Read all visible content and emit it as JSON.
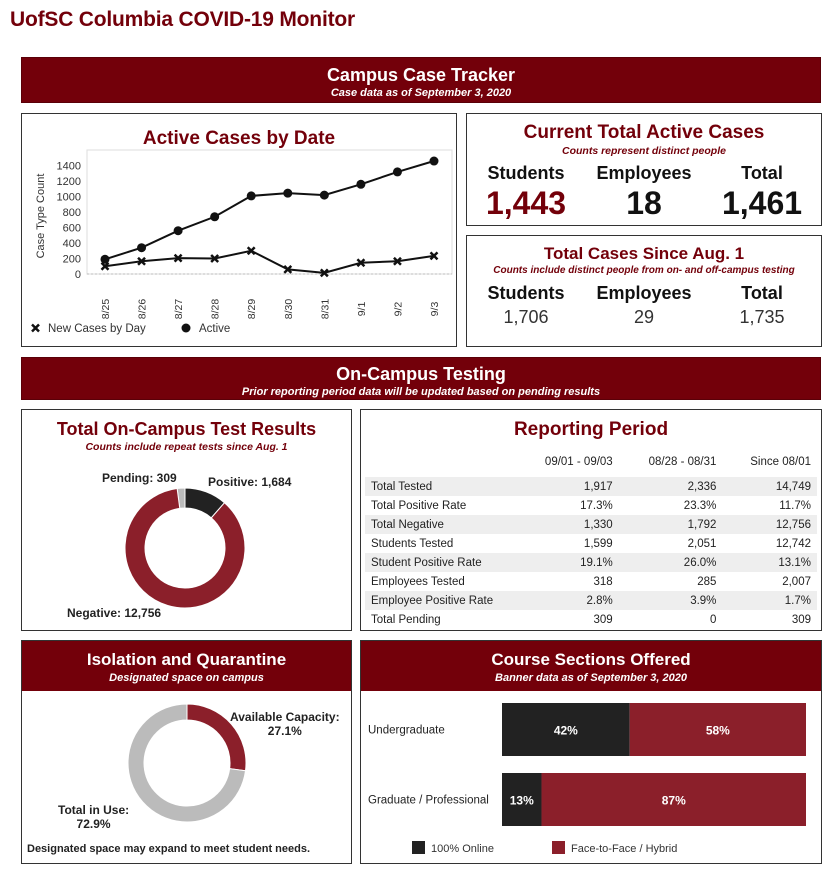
{
  "page_title": "UofSC Columbia COVID-19 Monitor",
  "colors": {
    "garnet": "#73000a",
    "red": "#8b1f2a",
    "black": "#222222",
    "gray": "#bbbbbb"
  },
  "campus_banner": {
    "title": "Campus Case Tracker",
    "subtitle": "Case data as of September 3, 2020"
  },
  "current_active": {
    "title": "Current Total Active Cases",
    "subtitle": "Counts represent distinct people",
    "labels": [
      "Students",
      "Employees",
      "Total"
    ],
    "values": [
      "1,443",
      "18",
      "1,461"
    ]
  },
  "total_since": {
    "title": "Total Cases Since Aug. 1",
    "subtitle": "Counts include distinct people from on- and off-campus testing",
    "labels": [
      "Students",
      "Employees",
      "Total"
    ],
    "values": [
      "1,706",
      "29",
      "1,735"
    ]
  },
  "testing_banner": {
    "title": "On-Campus Testing",
    "subtitle": "Prior reporting period data will be updated based on pending results"
  },
  "test_results": {
    "title": "Total On-Campus Test Results",
    "subtitle": "Counts include repeat tests since Aug. 1",
    "pending_label": "Pending: 309",
    "positive_label": "Positive: 1,684",
    "negative_label": "Negative: 12,756"
  },
  "reporting": {
    "title": "Reporting Period",
    "columns": [
      "09/01 - 09/03",
      "08/28 - 08/31",
      "Since 08/01"
    ],
    "rows": [
      [
        "Total Tested",
        "1,917",
        "2,336",
        "14,749"
      ],
      [
        "Total Positive Rate",
        "17.3%",
        "23.3%",
        "11.7%"
      ],
      [
        "Total Negative",
        "1,330",
        "1,792",
        "12,756"
      ],
      [
        "Students Tested",
        "1,599",
        "2,051",
        "12,742"
      ],
      [
        "Student Positive Rate",
        "19.1%",
        "26.0%",
        "13.1%"
      ],
      [
        "Employees Tested",
        "318",
        "285",
        "2,007"
      ],
      [
        "Employee Positive Rate",
        "2.8%",
        "3.9%",
        "1.7%"
      ],
      [
        "Total Pending",
        "309",
        "0",
        "309"
      ]
    ]
  },
  "isolation": {
    "title": "Isolation and Quarantine",
    "subtitle": "Designated space on campus",
    "available_label": "Available Capacity:",
    "available_value": "27.1%",
    "in_use_label": "Total in Use:",
    "in_use_value": "72.9%",
    "note": "Designated space may expand to meet student needs."
  },
  "courses": {
    "title": "Course Sections Offered",
    "subtitle": "Banner data as of September 3, 2020"
  },
  "chart_data": [
    {
      "type": "line",
      "title": "Active Cases by Date",
      "xlabel": "",
      "ylabel": "Case Type Count",
      "ylim": [
        0,
        1500
      ],
      "yticks": [
        0,
        200,
        400,
        600,
        800,
        1000,
        1200,
        1400
      ],
      "categories": [
        "8/25",
        "8/26",
        "8/27",
        "8/28",
        "8/29",
        "8/30",
        "8/31",
        "9/1",
        "9/2",
        "9/3"
      ],
      "series": [
        {
          "name": "New Cases by Day",
          "marker": "cross",
          "values": [
            100,
            165,
            205,
            200,
            300,
            60,
            15,
            145,
            165,
            235
          ]
        },
        {
          "name": "Active",
          "marker": "dot",
          "values": [
            190,
            340,
            560,
            740,
            1010,
            1045,
            1020,
            1160,
            1320,
            1461
          ]
        }
      ]
    },
    {
      "type": "pie",
      "title": "Total On-Campus Test Results",
      "categories": [
        "Pending",
        "Positive",
        "Negative"
      ],
      "values": [
        309,
        1684,
        12756
      ]
    },
    {
      "type": "pie",
      "title": "Isolation and Quarantine",
      "categories": [
        "Available Capacity",
        "Total in Use"
      ],
      "values": [
        27.1,
        72.9
      ]
    },
    {
      "type": "bar",
      "title": "Course Sections Offered",
      "categories": [
        "Undergraduate",
        "Graduate / Professional"
      ],
      "series": [
        {
          "name": "100% Online",
          "values": [
            42,
            13
          ]
        },
        {
          "name": "Face-to-Face / Hybrid",
          "values": [
            58,
            87
          ]
        }
      ],
      "labels": [
        [
          "42%",
          "58%"
        ],
        [
          "13%",
          "87%"
        ]
      ]
    }
  ]
}
